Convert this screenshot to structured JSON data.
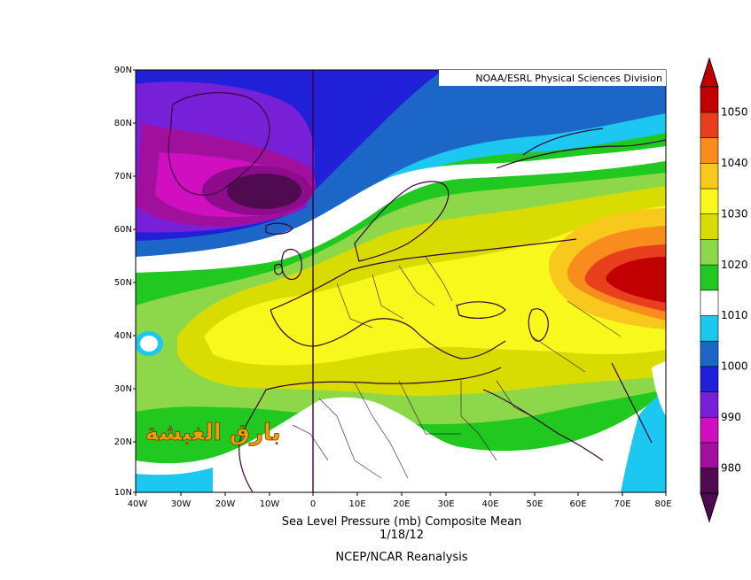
{
  "map": {
    "source_label": "NOAA/ESRL Physical Sciences Division",
    "lat_ticks": [
      "90N",
      "80N",
      "70N",
      "60N",
      "50N",
      "40N",
      "30N",
      "20N",
      "10N"
    ],
    "lon_ticks": [
      "40W",
      "30W",
      "20W",
      "10W",
      "0",
      "10E",
      "20E",
      "30E",
      "40E",
      "50E",
      "60E",
      "70E",
      "80E"
    ],
    "watermark": "بارق الغبشة"
  },
  "colorbar": {
    "labels": [
      "1050",
      "1040",
      "1030",
      "1020",
      "1010",
      "1000",
      "990",
      "980"
    ],
    "colors": [
      "#c00000",
      "#e8401c",
      "#f88c1c",
      "#f8c81c",
      "#f8f81c",
      "#d8dc00",
      "#8cd848",
      "#20c820",
      "#ffffff",
      "#1cc8f0",
      "#1c88d8",
      "#1c50c8",
      "#2020d8",
      "#7820d8",
      "#b010d0",
      "#d010c0",
      "#8c0c8c",
      "#500a50"
    ],
    "bands": [
      {
        "color": "#500a50",
        "label": "980"
      },
      {
        "color": "#a0109c",
        "label": ""
      },
      {
        "color": "#d010c0",
        "label": "990"
      },
      {
        "color": "#7820d8",
        "label": ""
      },
      {
        "color": "#2020d8",
        "label": "1000"
      },
      {
        "color": "#1c66c8",
        "label": ""
      },
      {
        "color": "#1cc8f0",
        "label": "1010"
      },
      {
        "color": "#ffffff",
        "label": ""
      },
      {
        "color": "#20c820",
        "label": "1020"
      },
      {
        "color": "#8cd848",
        "label": ""
      },
      {
        "color": "#d8dc00",
        "label": "1030"
      },
      {
        "color": "#f8f81c",
        "label": ""
      },
      {
        "color": "#f8c81c",
        "label": "1040"
      },
      {
        "color": "#f88c1c",
        "label": ""
      },
      {
        "color": "#e8401c",
        "label": "1050"
      },
      {
        "color": "#c00000",
        "label": ""
      }
    ]
  },
  "caption": {
    "line1": "Sea Level Pressure (mb) Composite Mean",
    "line2": "1/18/12",
    "line3": "NCEP/NCAR Reanalysis"
  }
}
